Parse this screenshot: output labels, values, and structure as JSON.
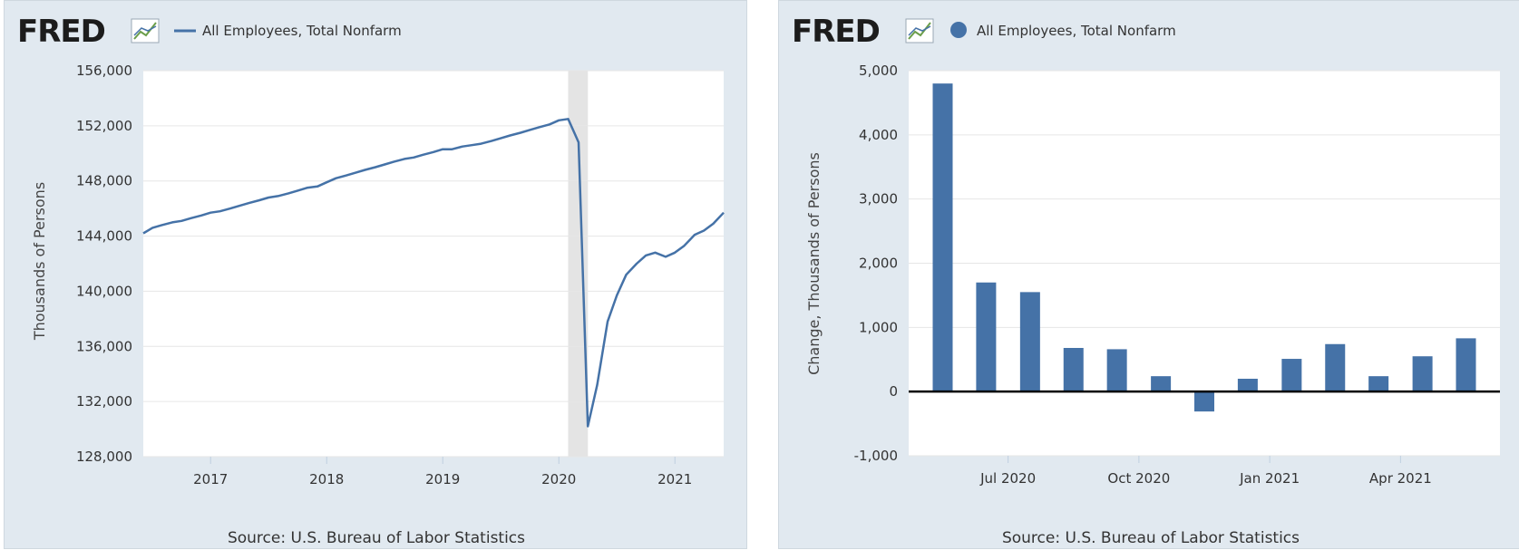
{
  "chart_data": [
    {
      "type": "line",
      "logo": "FRED",
      "legend": "All Employees, Total Nonfarm",
      "ylabel": "Thousands of Persons",
      "source": "Source: U.S. Bureau of Labor Statistics",
      "ylim": [
        128000,
        156000
      ],
      "yticks": [
        "156,000",
        "152,000",
        "148,000",
        "144,000",
        "140,000",
        "136,000",
        "132,000",
        "128,000"
      ],
      "ytick_values": [
        156000,
        152000,
        148000,
        144000,
        140000,
        136000,
        132000,
        128000
      ],
      "xlim": [
        2016.42,
        2021.42
      ],
      "xticks": [
        "2017",
        "2018",
        "2019",
        "2020",
        "2021"
      ],
      "xtick_values": [
        2017,
        2018,
        2019,
        2020,
        2021
      ],
      "grid": true,
      "recession_shading": [
        2020.08,
        2020.25
      ],
      "x": [
        2016.42,
        2016.5,
        2016.58,
        2016.67,
        2016.75,
        2016.83,
        2016.92,
        2017.0,
        2017.08,
        2017.17,
        2017.25,
        2017.33,
        2017.42,
        2017.5,
        2017.58,
        2017.67,
        2017.75,
        2017.83,
        2017.92,
        2018.0,
        2018.08,
        2018.17,
        2018.25,
        2018.33,
        2018.42,
        2018.5,
        2018.58,
        2018.67,
        2018.75,
        2018.83,
        2018.92,
        2019.0,
        2019.08,
        2019.17,
        2019.25,
        2019.33,
        2019.42,
        2019.5,
        2019.58,
        2019.67,
        2019.75,
        2019.83,
        2019.92,
        2020.0,
        2020.08,
        2020.17,
        2020.25,
        2020.33,
        2020.42,
        2020.5,
        2020.58,
        2020.67,
        2020.75,
        2020.83,
        2020.92,
        2021.0,
        2021.08,
        2021.17,
        2021.25,
        2021.33,
        2021.42
      ],
      "values": [
        144200,
        144600,
        144800,
        145000,
        145100,
        145300,
        145500,
        145700,
        145800,
        146000,
        146200,
        146400,
        146600,
        146800,
        146900,
        147100,
        147300,
        147500,
        147600,
        147900,
        148200,
        148400,
        148600,
        148800,
        149000,
        149200,
        149400,
        149600,
        149700,
        149900,
        150100,
        150300,
        150300,
        150500,
        150600,
        150700,
        150900,
        151100,
        151300,
        151500,
        151700,
        151900,
        152100,
        152400,
        152500,
        150800,
        130200,
        133200,
        137800,
        139700,
        141200,
        142000,
        142600,
        142800,
        142500,
        142800,
        143300,
        144100,
        144400,
        144900,
        145700
      ],
      "series_color": "#4572a7"
    },
    {
      "type": "bar",
      "logo": "FRED",
      "legend": "All Employees, Total Nonfarm",
      "ylabel": "Change, Thousands of Persons",
      "source": "Source: U.S. Bureau of Labor Statistics",
      "ylim": [
        -1000,
        5000
      ],
      "yticks": [
        "5,000",
        "4,000",
        "3,000",
        "2,000",
        "1,000",
        "0",
        "-1,000"
      ],
      "ytick_values": [
        5000,
        4000,
        3000,
        2000,
        1000,
        0,
        -1000
      ],
      "xlim": [
        2020.31,
        2021.44
      ],
      "xticks": [
        "Jul 2020",
        "Oct 2020",
        "Jan 2021",
        "Apr 2021"
      ],
      "xtick_values": [
        2020.5,
        2020.75,
        2021.0,
        2021.25
      ],
      "grid": true,
      "x": [
        2020.375,
        2020.458,
        2020.542,
        2020.625,
        2020.708,
        2020.792,
        2020.875,
        2020.958,
        2021.042,
        2021.125,
        2021.208,
        2021.292,
        2021.375
      ],
      "values": [
        4800,
        1700,
        1550,
        680,
        660,
        240,
        -310,
        200,
        510,
        740,
        240,
        550,
        830
      ],
      "series_color": "#4572a7"
    }
  ]
}
